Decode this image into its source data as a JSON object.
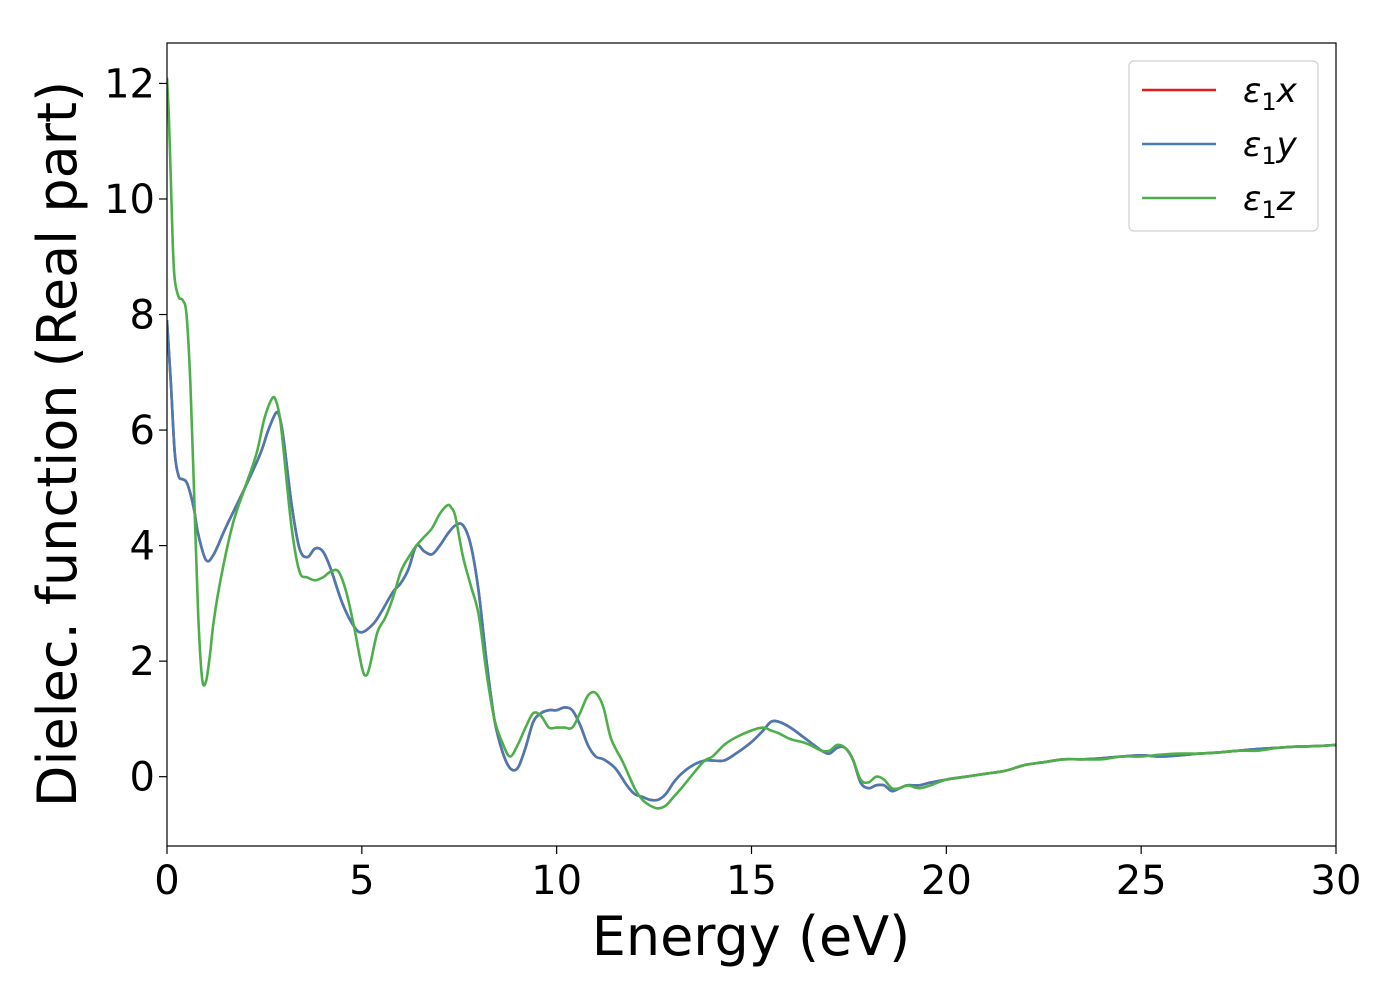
{
  "chart_data": {
    "type": "line",
    "title": "",
    "xlabel": "Energy (eV)",
    "ylabel": "Dielec. function (Real part)",
    "xlim": [
      0,
      30
    ],
    "ylim": [
      -1.2,
      12.7
    ],
    "xticks": [
      0,
      5,
      10,
      15,
      20,
      25,
      30
    ],
    "yticks": [
      0,
      2,
      4,
      6,
      8,
      10,
      12
    ],
    "grid": false,
    "legend_position": "top-right",
    "series": [
      {
        "name": "ε₁x",
        "legend_main": "ε",
        "legend_sub": "1",
        "legend_var": "x",
        "color": "#e41a1c",
        "x": [
          0,
          0.1,
          0.2,
          0.3,
          0.4,
          0.5,
          0.6,
          0.7,
          0.8,
          1.0,
          1.2,
          1.5,
          2.0,
          2.4,
          2.6,
          2.8,
          2.9,
          3.0,
          3.2,
          3.4,
          3.6,
          3.8,
          4.0,
          4.2,
          4.5,
          4.8,
          5.0,
          5.3,
          5.5,
          5.8,
          6.0,
          6.2,
          6.4,
          6.6,
          6.8,
          7.0,
          7.2,
          7.4,
          7.6,
          7.8,
          8.0,
          8.2,
          8.4,
          8.6,
          8.8,
          9.0,
          9.2,
          9.4,
          9.6,
          9.8,
          10.0,
          10.2,
          10.4,
          10.6,
          10.8,
          11.0,
          11.2,
          11.5,
          11.8,
          12.0,
          12.2,
          12.4,
          12.6,
          12.8,
          13.0,
          13.2,
          13.5,
          13.8,
          14.0,
          14.3,
          14.6,
          15.0,
          15.3,
          15.5,
          15.7,
          16.0,
          16.3,
          16.5,
          16.8,
          17.0,
          17.2,
          17.4,
          17.6,
          17.8,
          18.0,
          18.2,
          18.4,
          18.6,
          18.8,
          19.0,
          19.3,
          19.6,
          20.0,
          20.5,
          21.0,
          21.5,
          22.0,
          22.5,
          23.0,
          23.5,
          24.0,
          24.5,
          25.0,
          25.5,
          26.0,
          26.5,
          27.0,
          27.5,
          28.0,
          28.5,
          29.0,
          29.5,
          30.0
        ],
        "y": [
          7.9,
          6.8,
          5.6,
          5.2,
          5.15,
          5.1,
          4.9,
          4.6,
          4.2,
          3.75,
          3.85,
          4.3,
          5.0,
          5.6,
          6.0,
          6.3,
          6.2,
          5.8,
          4.7,
          3.95,
          3.8,
          3.95,
          3.9,
          3.6,
          3.0,
          2.6,
          2.5,
          2.65,
          2.85,
          3.2,
          3.35,
          3.6,
          4.0,
          3.9,
          3.85,
          4.0,
          4.2,
          4.35,
          4.35,
          4.0,
          3.2,
          2.0,
          1.0,
          0.45,
          0.15,
          0.15,
          0.5,
          0.95,
          1.1,
          1.15,
          1.15,
          1.2,
          1.15,
          0.9,
          0.55,
          0.35,
          0.3,
          0.15,
          -0.15,
          -0.3,
          -0.35,
          -0.4,
          -0.4,
          -0.3,
          -0.1,
          0.05,
          0.2,
          0.28,
          0.28,
          0.28,
          0.4,
          0.6,
          0.8,
          0.95,
          0.95,
          0.85,
          0.7,
          0.6,
          0.45,
          0.4,
          0.5,
          0.5,
          0.3,
          -0.1,
          -0.2,
          -0.15,
          -0.15,
          -0.25,
          -0.2,
          -0.15,
          -0.15,
          -0.1,
          -0.05,
          0.0,
          0.05,
          0.1,
          0.2,
          0.25,
          0.3,
          0.3,
          0.32,
          0.35,
          0.37,
          0.35,
          0.37,
          0.4,
          0.42,
          0.45,
          0.48,
          0.5,
          0.52,
          0.53,
          0.55
        ]
      },
      {
        "name": "ε₁y",
        "legend_main": "ε",
        "legend_sub": "1",
        "legend_var": "y",
        "color": "#4a7ab3",
        "x": [
          0,
          0.1,
          0.2,
          0.3,
          0.4,
          0.5,
          0.6,
          0.7,
          0.8,
          1.0,
          1.2,
          1.5,
          2.0,
          2.4,
          2.6,
          2.8,
          2.9,
          3.0,
          3.2,
          3.4,
          3.6,
          3.8,
          4.0,
          4.2,
          4.5,
          4.8,
          5.0,
          5.3,
          5.5,
          5.8,
          6.0,
          6.2,
          6.4,
          6.6,
          6.8,
          7.0,
          7.2,
          7.4,
          7.6,
          7.8,
          8.0,
          8.2,
          8.4,
          8.6,
          8.8,
          9.0,
          9.2,
          9.4,
          9.6,
          9.8,
          10.0,
          10.2,
          10.4,
          10.6,
          10.8,
          11.0,
          11.2,
          11.5,
          11.8,
          12.0,
          12.2,
          12.4,
          12.6,
          12.8,
          13.0,
          13.2,
          13.5,
          13.8,
          14.0,
          14.3,
          14.6,
          15.0,
          15.3,
          15.5,
          15.7,
          16.0,
          16.3,
          16.5,
          16.8,
          17.0,
          17.2,
          17.4,
          17.6,
          17.8,
          18.0,
          18.2,
          18.4,
          18.6,
          18.8,
          19.0,
          19.3,
          19.6,
          20.0,
          20.5,
          21.0,
          21.5,
          22.0,
          22.5,
          23.0,
          23.5,
          24.0,
          24.5,
          25.0,
          25.5,
          26.0,
          26.5,
          27.0,
          27.5,
          28.0,
          28.5,
          29.0,
          29.5,
          30.0
        ],
        "y": [
          7.9,
          6.8,
          5.6,
          5.2,
          5.15,
          5.1,
          4.9,
          4.6,
          4.2,
          3.75,
          3.85,
          4.3,
          5.0,
          5.6,
          6.0,
          6.3,
          6.2,
          5.8,
          4.7,
          3.95,
          3.8,
          3.95,
          3.9,
          3.6,
          3.0,
          2.6,
          2.5,
          2.65,
          2.85,
          3.2,
          3.35,
          3.6,
          4.0,
          3.9,
          3.85,
          4.0,
          4.2,
          4.35,
          4.35,
          4.0,
          3.2,
          2.0,
          1.0,
          0.45,
          0.15,
          0.15,
          0.5,
          0.95,
          1.1,
          1.15,
          1.15,
          1.2,
          1.15,
          0.9,
          0.55,
          0.35,
          0.3,
          0.15,
          -0.15,
          -0.3,
          -0.35,
          -0.4,
          -0.4,
          -0.3,
          -0.1,
          0.05,
          0.2,
          0.28,
          0.28,
          0.28,
          0.4,
          0.6,
          0.8,
          0.95,
          0.95,
          0.85,
          0.7,
          0.6,
          0.45,
          0.4,
          0.5,
          0.5,
          0.3,
          -0.1,
          -0.2,
          -0.15,
          -0.15,
          -0.25,
          -0.2,
          -0.15,
          -0.15,
          -0.1,
          -0.05,
          0.0,
          0.05,
          0.1,
          0.2,
          0.25,
          0.3,
          0.3,
          0.32,
          0.35,
          0.37,
          0.35,
          0.37,
          0.4,
          0.42,
          0.45,
          0.48,
          0.5,
          0.52,
          0.53,
          0.55
        ]
      },
      {
        "name": "ε₁z",
        "legend_main": "ε",
        "legend_sub": "1",
        "legend_var": "z",
        "color": "#4daf4a",
        "x": [
          0,
          0.05,
          0.1,
          0.15,
          0.2,
          0.3,
          0.4,
          0.5,
          0.6,
          0.7,
          0.8,
          0.9,
          1.0,
          1.1,
          1.2,
          1.4,
          1.7,
          2.0,
          2.3,
          2.5,
          2.7,
          2.8,
          2.9,
          3.0,
          3.2,
          3.4,
          3.6,
          3.8,
          4.0,
          4.2,
          4.4,
          4.6,
          4.8,
          5.0,
          5.1,
          5.2,
          5.4,
          5.6,
          5.8,
          6.0,
          6.2,
          6.4,
          6.6,
          6.8,
          7.0,
          7.2,
          7.3,
          7.4,
          7.6,
          7.8,
          8.0,
          8.2,
          8.4,
          8.6,
          8.8,
          9.0,
          9.2,
          9.4,
          9.6,
          9.8,
          10.0,
          10.2,
          10.4,
          10.6,
          10.8,
          11.0,
          11.2,
          11.4,
          11.7,
          12.0,
          12.2,
          12.4,
          12.6,
          12.8,
          13.0,
          13.2,
          13.5,
          13.8,
          14.0,
          14.3,
          14.6,
          15.0,
          15.3,
          15.5,
          15.7,
          16.0,
          16.3,
          16.5,
          16.8,
          17.0,
          17.2,
          17.4,
          17.6,
          17.8,
          18.0,
          18.2,
          18.4,
          18.6,
          18.8,
          19.0,
          19.3,
          19.6,
          20.0,
          20.5,
          21.0,
          21.5,
          22.0,
          22.5,
          23.0,
          23.5,
          24.0,
          24.5,
          25.0,
          25.5,
          26.0,
          26.5,
          27.0,
          27.5,
          28.0,
          28.5,
          29.0,
          29.5,
          30.0
        ],
        "y": [
          12.1,
          11.4,
          10.3,
          9.2,
          8.6,
          8.3,
          8.25,
          8.0,
          6.8,
          4.8,
          2.8,
          1.7,
          1.65,
          2.1,
          2.7,
          3.5,
          4.4,
          5.0,
          5.6,
          6.2,
          6.55,
          6.5,
          6.2,
          5.6,
          4.3,
          3.55,
          3.45,
          3.4,
          3.45,
          3.55,
          3.55,
          3.2,
          2.6,
          1.9,
          1.75,
          1.9,
          2.5,
          2.75,
          3.1,
          3.55,
          3.8,
          4.0,
          4.15,
          4.3,
          4.55,
          4.7,
          4.65,
          4.5,
          3.8,
          3.3,
          2.8,
          1.8,
          1.0,
          0.6,
          0.35,
          0.55,
          0.85,
          1.1,
          1.05,
          0.85,
          0.85,
          0.85,
          0.85,
          1.1,
          1.4,
          1.45,
          1.2,
          0.65,
          0.25,
          -0.2,
          -0.4,
          -0.5,
          -0.55,
          -0.5,
          -0.35,
          -0.2,
          0.05,
          0.28,
          0.35,
          0.55,
          0.68,
          0.8,
          0.85,
          0.8,
          0.75,
          0.65,
          0.6,
          0.55,
          0.45,
          0.45,
          0.55,
          0.5,
          0.3,
          -0.05,
          -0.1,
          0.0,
          -0.05,
          -0.2,
          -0.2,
          -0.15,
          -0.2,
          -0.15,
          -0.05,
          0.0,
          0.05,
          0.1,
          0.2,
          0.25,
          0.3,
          0.3,
          0.3,
          0.35,
          0.35,
          0.38,
          0.4,
          0.4,
          0.42,
          0.45,
          0.45,
          0.5,
          0.52,
          0.53,
          0.55
        ]
      }
    ]
  }
}
